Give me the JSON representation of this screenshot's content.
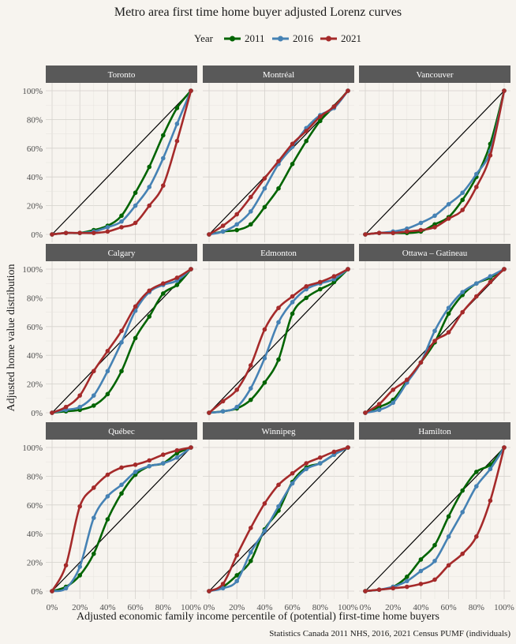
{
  "title": "Metro area first time home buyer adjusted Lorenz curves",
  "legend": {
    "title": "Year",
    "items": [
      {
        "label": "2011",
        "color": "#006400"
      },
      {
        "label": "2016",
        "color": "#4682b4"
      },
      {
        "label": "2021",
        "color": "#a52a2a"
      }
    ]
  },
  "xlabel": "Adjusted economic family income percentile of (potential) first-time home buyers",
  "ylabel": "Adjusted home value distribution",
  "caption": "Statistics Canada 2011 NHS, 2016, 2021 Census PUMF (individuals)",
  "chart_data": {
    "type": "line",
    "x": [
      0,
      10,
      20,
      30,
      40,
      50,
      60,
      70,
      80,
      90,
      100
    ],
    "xlim": [
      0,
      100
    ],
    "ylim": [
      0,
      100
    ],
    "x_tick_labels": [
      "0%",
      "20%",
      "40%",
      "60%",
      "80%",
      "100%"
    ],
    "y_tick_labels": [
      "0%",
      "20%",
      "40%",
      "60%",
      "80%",
      "100%"
    ],
    "grid": true,
    "legend_position": "top",
    "reference_line": "diagonal",
    "panels": [
      {
        "name": "Toronto",
        "series": [
          {
            "name": "2011",
            "values": [
              0,
              1,
              1,
              3,
              6,
              13,
              29,
              47,
              69,
              88,
              100
            ]
          },
          {
            "name": "2016",
            "values": [
              0,
              1,
              1,
              2,
              5,
              9,
              20,
              33,
              53,
              77,
              100
            ]
          },
          {
            "name": "2021",
            "values": [
              0,
              1,
              1,
              1,
              2,
              5,
              8,
              20,
              34,
              65,
              100
            ]
          }
        ]
      },
      {
        "name": "Montréal",
        "series": [
          {
            "name": "2011",
            "values": [
              0,
              2,
              3,
              7,
              19,
              32,
              49,
              65,
              79,
              89,
              100
            ]
          },
          {
            "name": "2016",
            "values": [
              0,
              2,
              7,
              16,
              32,
              49,
              61,
              74,
              83,
              88,
              100
            ]
          },
          {
            "name": "2021",
            "values": [
              0,
              6,
              14,
              26,
              39,
              51,
              63,
              72,
              82,
              89,
              100
            ]
          }
        ]
      },
      {
        "name": "Vancouver",
        "series": [
          {
            "name": "2011",
            "values": [
              0,
              1,
              1,
              1,
              2,
              7,
              12,
              24,
              40,
              63,
              100
            ]
          },
          {
            "name": "2016",
            "values": [
              0,
              1,
              2,
              4,
              8,
              13,
              21,
              29,
              42,
              58,
              100
            ]
          },
          {
            "name": "2021",
            "values": [
              0,
              1,
              1,
              2,
              3,
              5,
              11,
              17,
              33,
              55,
              100
            ]
          }
        ]
      },
      {
        "name": "Calgary",
        "series": [
          {
            "name": "2011",
            "values": [
              0,
              1,
              2,
              5,
              13,
              29,
              52,
              67,
              83,
              89,
              100
            ]
          },
          {
            "name": "2016",
            "values": [
              0,
              2,
              4,
              12,
              29,
              49,
              71,
              84,
              89,
              92,
              100
            ]
          },
          {
            "name": "2021",
            "values": [
              0,
              4,
              12,
              29,
              43,
              57,
              74,
              85,
              90,
              94,
              100
            ]
          }
        ]
      },
      {
        "name": "Edmonton",
        "series": [
          {
            "name": "2011",
            "values": [
              0,
              1,
              3,
              9,
              21,
              37,
              69,
              80,
              86,
              91,
              100
            ]
          },
          {
            "name": "2016",
            "values": [
              0,
              1,
              4,
              17,
              38,
              63,
              77,
              86,
              90,
              93,
              100
            ]
          },
          {
            "name": "2021",
            "values": [
              0,
              8,
              16,
              33,
              58,
              73,
              81,
              88,
              91,
              95,
              100
            ]
          }
        ]
      },
      {
        "name": "Ottawa – Gatineau",
        "series": [
          {
            "name": "2011",
            "values": [
              0,
              4,
              9,
              22,
              35,
              49,
              69,
              82,
              90,
              94,
              100
            ]
          },
          {
            "name": "2016",
            "values": [
              0,
              2,
              7,
              21,
              35,
              57,
              73,
              84,
              90,
              95,
              100
            ]
          },
          {
            "name": "2021",
            "values": [
              0,
              6,
              16,
              23,
              35,
              50,
              56,
              70,
              81,
              91,
              100
            ]
          }
        ]
      },
      {
        "name": "Québec",
        "series": [
          {
            "name": "2011",
            "values": [
              0,
              3,
              11,
              26,
              50,
              68,
              81,
              87,
              89,
              96,
              100
            ]
          },
          {
            "name": "2016",
            "values": [
              0,
              2,
              17,
              51,
              66,
              74,
              83,
              87,
              89,
              93,
              100
            ]
          },
          {
            "name": "2021",
            "values": [
              0,
              18,
              59,
              72,
              81,
              86,
              88,
              91,
              95,
              98,
              100
            ]
          }
        ]
      },
      {
        "name": "Winnipeg",
        "series": [
          {
            "name": "2011",
            "values": [
              0,
              3,
              11,
              21,
              43,
              56,
              76,
              86,
              89,
              95,
              100
            ]
          },
          {
            "name": "2016",
            "values": [
              0,
              2,
              7,
              27,
              42,
              59,
              75,
              85,
              89,
              95,
              100
            ]
          },
          {
            "name": "2021",
            "values": [
              0,
              5,
              25,
              44,
              61,
              74,
              82,
              89,
              93,
              97,
              100
            ]
          }
        ]
      },
      {
        "name": "Hamilton",
        "series": [
          {
            "name": "2011",
            "values": [
              0,
              1,
              3,
              10,
              22,
              32,
              52,
              70,
              83,
              88,
              100
            ]
          },
          {
            "name": "2016",
            "values": [
              0,
              1,
              3,
              7,
              14,
              21,
              38,
              55,
              73,
              85,
              100
            ]
          },
          {
            "name": "2021",
            "values": [
              0,
              1,
              2,
              3,
              5,
              8,
              18,
              26,
              38,
              63,
              100
            ]
          }
        ]
      }
    ]
  }
}
